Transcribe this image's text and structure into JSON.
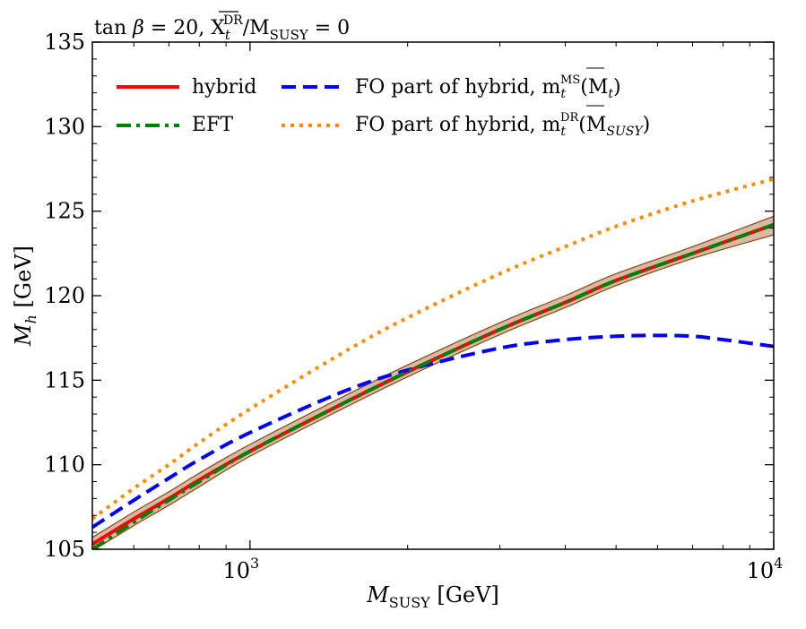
{
  "chart_data": {
    "type": "line",
    "title": "tan β = 20, X_t^DR-bar / M_SUSY = 0",
    "title_parts": {
      "lead": "tan ",
      "beta": "β",
      "mid": " = 20, X",
      "sub": "t",
      "sup": "DR",
      "tail": "/M",
      "sub2": "SUSY",
      "end": " = 0"
    },
    "xlabel": "M_SUSY [GeV]",
    "xlabel_parts": {
      "main": "M",
      "sub": "SUSY",
      "unit": " [GeV]"
    },
    "ylabel": "M_h [GeV]",
    "ylabel_parts": {
      "main": "M",
      "sub": "h",
      "unit": " [GeV]"
    },
    "x_scale": "log",
    "xlim": [
      500,
      10000
    ],
    "ylim": [
      105,
      135
    ],
    "x_major_ticks": [
      {
        "value": 1000,
        "base": "10",
        "exp": "3"
      },
      {
        "value": 10000,
        "base": "10",
        "exp": "4"
      }
    ],
    "y_ticks": [
      105,
      110,
      115,
      120,
      125,
      130,
      135
    ],
    "grid": false,
    "legend_position": "top",
    "band": {
      "name": "uncertainty band",
      "color": "#d8b9a6",
      "edge_color": "#8b4513",
      "x": [
        500,
        600,
        700,
        800,
        1000,
        1500,
        2000,
        3000,
        4000,
        5000,
        7000,
        10000
      ],
      "upper": [
        105.7,
        107.2,
        108.4,
        109.5,
        111.2,
        114.0,
        115.9,
        118.4,
        120.0,
        121.3,
        122.9,
        124.7
      ],
      "lower": [
        104.9,
        106.4,
        107.6,
        108.7,
        110.5,
        113.3,
        115.2,
        117.7,
        119.3,
        120.6,
        122.2,
        123.6
      ]
    },
    "series": [
      {
        "name": "hybrid",
        "color": "#ff0000",
        "style": "solid",
        "x": [
          500,
          600,
          700,
          800,
          1000,
          1500,
          2000,
          3000,
          4000,
          5000,
          7000,
          10000
        ],
        "values": [
          105.3,
          106.8,
          108.0,
          109.1,
          110.8,
          113.6,
          115.5,
          118.0,
          119.6,
          120.9,
          122.5,
          124.2
        ]
      },
      {
        "name": "EFT",
        "color": "#008000",
        "style": "dashdot",
        "x": [
          500,
          600,
          700,
          800,
          1000,
          1500,
          2000,
          3000,
          4000,
          5000,
          7000,
          10000
        ],
        "values": [
          105.0,
          106.6,
          107.9,
          109.0,
          110.8,
          113.6,
          115.5,
          118.0,
          119.6,
          120.9,
          122.5,
          124.2
        ]
      },
      {
        "name": "FO part of hybrid, m_t^MS-bar(M_t)",
        "label_parts": {
          "lead": "FO part of hybrid, m",
          "sub": "t",
          "sup": "MS",
          "tail": "(M",
          "sub2": "t",
          "end": ")"
        },
        "color": "#0000ff",
        "style": "dashed",
        "x": [
          500,
          600,
          700,
          800,
          1000,
          1500,
          2000,
          3000,
          4000,
          5000,
          6000,
          7000,
          8000,
          10000
        ],
        "values": [
          106.3,
          107.9,
          109.2,
          110.3,
          111.9,
          114.3,
          115.6,
          116.9,
          117.4,
          117.6,
          117.65,
          117.6,
          117.4,
          117.0
        ]
      },
      {
        "name": "FO part of hybrid, m_t^DR-bar(M_SUSY)",
        "label_parts": {
          "lead": "FO part of hybrid, m",
          "sub": "t",
          "sup": "DR",
          "tail": "(M",
          "sub2": "SUSY",
          "end": ")"
        },
        "color": "#ff8c00",
        "style": "dotted",
        "x": [
          500,
          600,
          700,
          800,
          1000,
          1500,
          2000,
          3000,
          4000,
          5000,
          7000,
          10000
        ],
        "values": [
          106.8,
          108.6,
          110.0,
          111.3,
          113.3,
          116.6,
          118.7,
          121.3,
          122.9,
          124.1,
          125.6,
          126.9
        ]
      }
    ]
  }
}
